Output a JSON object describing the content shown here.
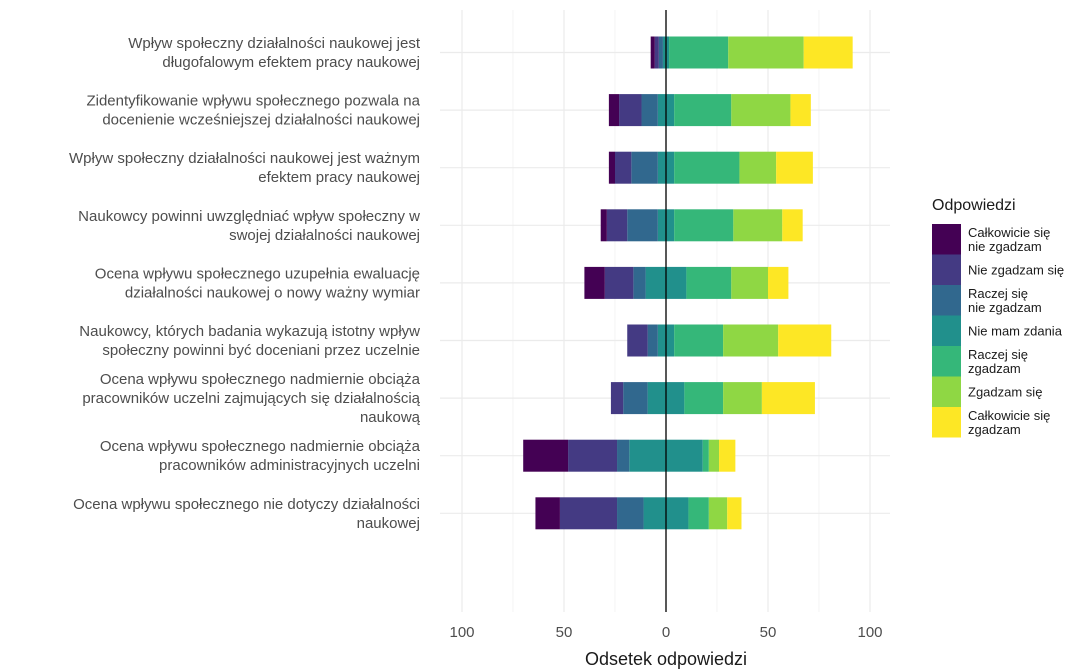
{
  "chart_data": {
    "type": "bar",
    "orientation": "horizontal",
    "stacking": "diverging",
    "xlabel": "Odsetek odpowiedzi",
    "ylabel": "",
    "xlim": [
      -100,
      100
    ],
    "x_ticks": [
      -100,
      -50,
      0,
      50,
      100
    ],
    "x_tick_labels": [
      "100",
      "50",
      "0",
      "50",
      "100"
    ],
    "grid": true,
    "legend_position": "right",
    "legend_title": "Odpowiedzi",
    "categories": [
      [
        "Wpływ społeczny działalności naukowej jest",
        "długofalowym efektem pracy naukowej"
      ],
      [
        "Zidentyfikowanie wpływu społecznego pozwala na",
        "docenienie wcześniejszej działalności naukowej"
      ],
      [
        "Wpływ społeczny działalności naukowej jest ważnym",
        "efektem pracy naukowej"
      ],
      [
        "Naukowcy powinni uwzględniać wpływ społeczny w",
        "swojej działalności naukowej"
      ],
      [
        "Ocena wpływu społecznego uzupełnia ewaluację",
        "działalności naukowej o nowy ważny wymiar"
      ],
      [
        "Naukowcy, których badania wykazują istotny wpływ",
        "społeczny powinni być doceniani przez uczelnie"
      ],
      [
        "Ocena wpływu społecznego nadmiernie obciąża",
        "pracowników uczelni zajmujących się działalnością",
        "naukową"
      ],
      [
        "Ocena wpływu społecznego nadmiernie obciąża",
        "pracowników administracyjnych uczelni"
      ],
      [
        "Ocena wpływu społecznego nie dotyczy działalności",
        "naukowej"
      ]
    ],
    "series": [
      {
        "name": [
          "Całkowicie się",
          "nie zgadzam"
        ],
        "color": "#440154",
        "values": [
          2,
          5,
          3,
          3,
          10,
          0,
          0,
          22,
          12
        ]
      },
      {
        "name": [
          "Nie zgadzam się"
        ],
        "color": "#443a83",
        "values": [
          2,
          11,
          8,
          10,
          14,
          10,
          6,
          24,
          28
        ]
      },
      {
        "name": [
          "Raczej się",
          "nie zgadzam"
        ],
        "color": "#31688e",
        "values": [
          2,
          8,
          13,
          15,
          6,
          5,
          12,
          6,
          13
        ]
      },
      {
        "name": [
          "Nie mam zdania"
        ],
        "color": "#21908c",
        "values": [
          3,
          8,
          8,
          8,
          20,
          8,
          18,
          36,
          22
        ]
      },
      {
        "name": [
          "Raczej się",
          "zgadzam"
        ],
        "color": "#35b779",
        "values": [
          29,
          28,
          32,
          29,
          22,
          24,
          19,
          3,
          10
        ]
      },
      {
        "name": [
          "Zgadzam się"
        ],
        "color": "#8fd744",
        "values": [
          37,
          29,
          18,
          24,
          18,
          27,
          19,
          5,
          9
        ]
      },
      {
        "name": [
          "Całkowicie się",
          "zgadzam"
        ],
        "color": "#fde725",
        "values": [
          24,
          10,
          18,
          10,
          10,
          26,
          26,
          8,
          7
        ]
      }
    ]
  }
}
